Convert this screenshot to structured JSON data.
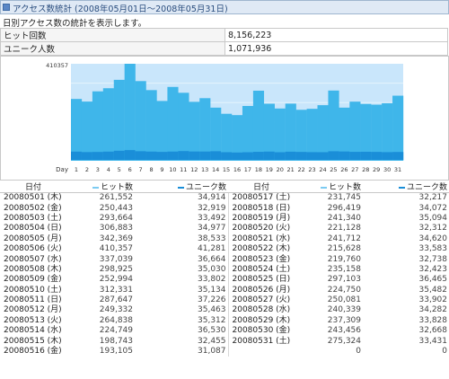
{
  "header": {
    "title": "アクセス数統計 (2008年05月01日～2008年05月31日)"
  },
  "description": "日別アクセス数の統計を表示します。",
  "stats": [
    {
      "label": "ヒット回数",
      "value": "8,156,223"
    },
    {
      "label": "ユニーク人数",
      "value": "1,071,936"
    }
  ],
  "colors": {
    "hits": "#a9dcf9",
    "hits_dark": "#3fb6ea",
    "unique": "#1a8ed8",
    "plot_bg": "#c9e6fb"
  },
  "chart_data": {
    "type": "bar",
    "max_label": "410357",
    "xlabel": "Day",
    "ylim": [
      0,
      410357
    ],
    "categories": [
      "1",
      "2",
      "3",
      "4",
      "5",
      "6",
      "7",
      "8",
      "9",
      "10",
      "11",
      "12",
      "13",
      "14",
      "15",
      "16",
      "17",
      "18",
      "19",
      "20",
      "21",
      "22",
      "23",
      "24",
      "25",
      "26",
      "27",
      "28",
      "29",
      "30",
      "31"
    ],
    "series": [
      {
        "name": "ヒット数",
        "values": [
          261552,
          250443,
          293664,
          306883,
          342369,
          410357,
          337039,
          298925,
          252994,
          312331,
          287647,
          249332,
          264838,
          224749,
          198743,
          193105,
          231745,
          296419,
          241340,
          221128,
          241712,
          215628,
          219760,
          235158,
          297103,
          224750,
          250081,
          240339,
          237309,
          243456,
          275324
        ]
      },
      {
        "name": "ユニーク数",
        "values": [
          34914,
          32919,
          33492,
          34977,
          38533,
          41281,
          36664,
          35030,
          33802,
          35134,
          37226,
          35463,
          35312,
          36530,
          32455,
          31087,
          32217,
          34072,
          35094,
          32312,
          34620,
          33583,
          32738,
          32423,
          36465,
          35482,
          33902,
          34282,
          33828,
          32668,
          33431
        ]
      }
    ]
  },
  "table": {
    "headers": {
      "date": "日付",
      "hits": "ヒット数",
      "unique": "ユニーク数"
    },
    "left": [
      [
        "20080501 (木)",
        "261,552",
        "34,914"
      ],
      [
        "20080502 (金)",
        "250,443",
        "32,919"
      ],
      [
        "20080503 (土)",
        "293,664",
        "33,492"
      ],
      [
        "20080504 (日)",
        "306,883",
        "34,977"
      ],
      [
        "20080505 (月)",
        "342,369",
        "38,533"
      ],
      [
        "20080506 (火)",
        "410,357",
        "41,281"
      ],
      [
        "20080507 (水)",
        "337,039",
        "36,664"
      ],
      [
        "20080508 (木)",
        "298,925",
        "35,030"
      ],
      [
        "20080509 (金)",
        "252,994",
        "33,802"
      ],
      [
        "20080510 (土)",
        "312,331",
        "35,134"
      ],
      [
        "20080511 (日)",
        "287,647",
        "37,226"
      ],
      [
        "20080512 (月)",
        "249,332",
        "35,463"
      ],
      [
        "20080513 (火)",
        "264,838",
        "35,312"
      ],
      [
        "20080514 (水)",
        "224,749",
        "36,530"
      ],
      [
        "20080515 (木)",
        "198,743",
        "32,455"
      ],
      [
        "20080516 (金)",
        "193,105",
        "31,087"
      ]
    ],
    "right": [
      [
        "20080517 (土)",
        "231,745",
        "32,217"
      ],
      [
        "20080518 (日)",
        "296,419",
        "34,072"
      ],
      [
        "20080519 (月)",
        "241,340",
        "35,094"
      ],
      [
        "20080520 (火)",
        "221,128",
        "32,312"
      ],
      [
        "20080521 (水)",
        "241,712",
        "34,620"
      ],
      [
        "20080522 (木)",
        "215,628",
        "33,583"
      ],
      [
        "20080523 (金)",
        "219,760",
        "32,738"
      ],
      [
        "20080524 (土)",
        "235,158",
        "32,423"
      ],
      [
        "20080525 (日)",
        "297,103",
        "36,465"
      ],
      [
        "20080526 (月)",
        "224,750",
        "35,482"
      ],
      [
        "20080527 (火)",
        "250,081",
        "33,902"
      ],
      [
        "20080528 (水)",
        "240,339",
        "34,282"
      ],
      [
        "20080529 (木)",
        "237,309",
        "33,828"
      ],
      [
        "20080530 (金)",
        "243,456",
        "32,668"
      ],
      [
        "20080531 (土)",
        "275,324",
        "33,431"
      ],
      [
        "",
        "0",
        "0"
      ]
    ]
  }
}
